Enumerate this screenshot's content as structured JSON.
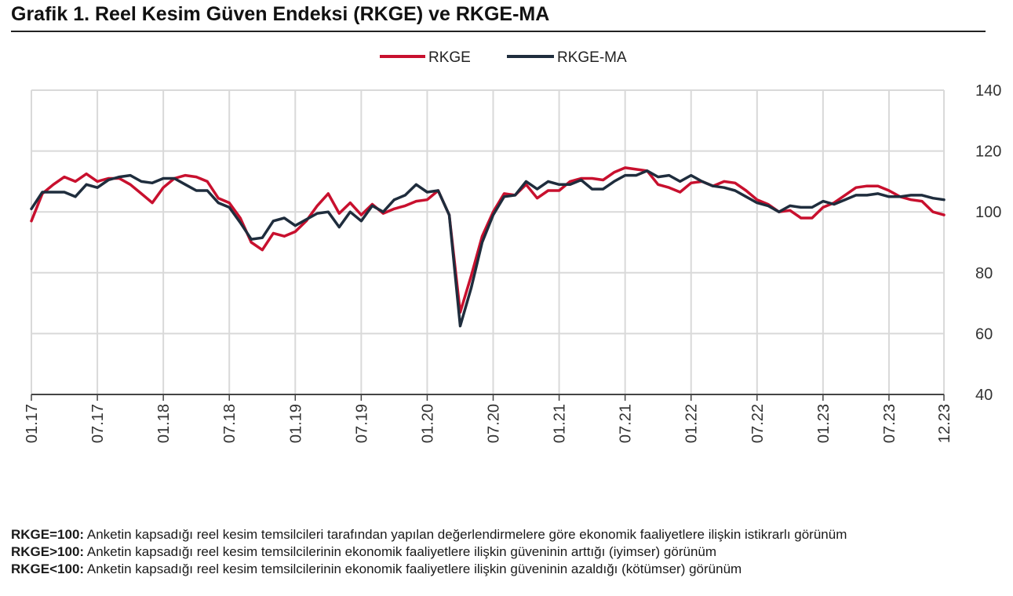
{
  "title": "Grafik 1. Reel Kesim Güven Endeksi (RKGE) ve RKGE-MA",
  "colors": {
    "rkge": "#c8102e",
    "rkge_ma": "#1f2d3d",
    "grid": "#d9d9d9",
    "axis": "#444444"
  },
  "chart_data": {
    "type": "line",
    "title": "Grafik 1. Reel Kesim Güven Endeksi (RKGE) ve RKGE-MA",
    "xlabel": "",
    "ylabel": "",
    "ylim": [
      40,
      140
    ],
    "yticks": [
      "140",
      "120",
      "100",
      "80",
      "60",
      "40"
    ],
    "xtick_labels": [
      "01.17",
      "07.17",
      "01.18",
      "07.18",
      "01.19",
      "07.19",
      "01.20",
      "07.20",
      "01.21",
      "07.21",
      "01.22",
      "07.22",
      "01.23",
      "07.23",
      "12.23"
    ],
    "xtick_index": [
      0,
      6,
      12,
      18,
      24,
      30,
      36,
      42,
      48,
      54,
      60,
      66,
      72,
      78,
      83
    ],
    "grid": true,
    "legend_position": "top-center",
    "series": [
      {
        "name": "RKGE",
        "color": "#c8102e",
        "values": [
          97,
          106,
          109,
          111.5,
          110,
          112.5,
          110,
          111,
          111,
          109,
          106,
          103,
          108,
          111,
          112,
          111.5,
          110,
          104.5,
          103,
          98,
          90,
          87.5,
          93,
          92,
          93.5,
          97,
          102,
          106,
          99.5,
          103,
          99,
          102.5,
          99.5,
          101,
          102,
          103.5,
          104,
          107,
          99,
          67,
          79,
          92,
          100,
          106,
          105.5,
          109,
          104.5,
          107,
          107,
          110,
          111,
          111,
          110.5,
          113,
          114.5,
          114,
          113.5,
          109,
          108,
          106.5,
          109.5,
          110,
          108.5,
          110,
          109.5,
          107,
          104,
          102.5,
          100,
          100.5,
          98,
          98,
          101.5,
          103,
          105.5,
          108,
          108.5,
          108.5,
          107,
          105,
          104,
          103.5,
          100,
          99
        ]
      },
      {
        "name": "RKGE-MA",
        "color": "#1f2d3d",
        "values": [
          101,
          106.5,
          106.5,
          106.5,
          105,
          109,
          108,
          110.5,
          111.5,
          112,
          110,
          109.5,
          111,
          111,
          109,
          107,
          107,
          103,
          101.5,
          96.5,
          91,
          91.5,
          97,
          98,
          95.5,
          97.5,
          99.5,
          100,
          95,
          100,
          97,
          102,
          100,
          104,
          105.5,
          109,
          106.5,
          107,
          99,
          62.5,
          75,
          90,
          99,
          105,
          105.5,
          110,
          107.5,
          110,
          109,
          109,
          110.5,
          107.5,
          107.5,
          110,
          112,
          112,
          113.5,
          111.5,
          112,
          110,
          112,
          110,
          108.5,
          108,
          107,
          105,
          103,
          102,
          100,
          102,
          101.5,
          101.5,
          103.5,
          102.5,
          104,
          105.5,
          105.5,
          106,
          105,
          105,
          105.5,
          105.5,
          104.5,
          104
        ]
      }
    ]
  },
  "footnotes": [
    {
      "key": "RKGE=100:",
      "text": " Anketin kapsadığı reel kesim temsilcileri tarafından yapılan değerlendirmelere göre ekonomik faaliyetlere ilişkin istikrarlı görünüm"
    },
    {
      "key": "RKGE>100:",
      "text": " Anketin kapsadığı reel kesim temsilcilerinin ekonomik faaliyetlere ilişkin güveninin arttığı (iyimser) görünüm"
    },
    {
      "key": "RKGE<100:",
      "text": " Anketin kapsadığı reel kesim temsilcilerinin ekonomik faaliyetlere ilişkin güveninin azaldığı (kötümser) görünüm"
    }
  ]
}
